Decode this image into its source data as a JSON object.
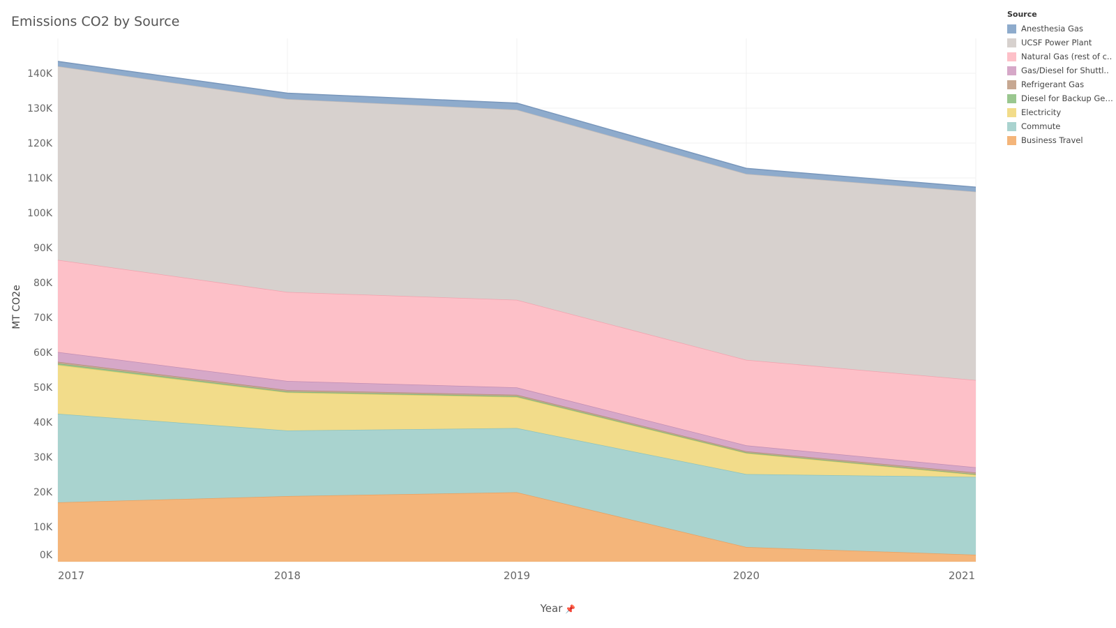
{
  "chart_data": {
    "type": "area",
    "title": "Emissions CO2 by Source",
    "xlabel": "Year",
    "ylabel": "MT CO2e",
    "legend_title": "Source",
    "categories": [
      "2017",
      "2018",
      "2019",
      "2020",
      "2021"
    ],
    "ylim": [
      0,
      150000
    ],
    "y_ticks": [
      0,
      10000,
      20000,
      30000,
      40000,
      50000,
      60000,
      70000,
      80000,
      90000,
      100000,
      110000,
      120000,
      130000,
      140000
    ],
    "y_tick_labels": [
      "0K",
      "10K",
      "20K",
      "30K",
      "40K",
      "50K",
      "60K",
      "70K",
      "80K",
      "90K",
      "100K",
      "110K",
      "120K",
      "130K",
      "140K"
    ],
    "stacked": true,
    "series": [
      {
        "name": "Business Travel",
        "legend_label": "Business Travel",
        "color": "#f4b57a",
        "line": "#e8a060",
        "values": [
          17000,
          18800,
          19900,
          4200,
          2000
        ]
      },
      {
        "name": "Commute",
        "legend_label": "Commute",
        "color": "#a9d3cf",
        "line": "#8cc3bd",
        "values": [
          25400,
          18800,
          18400,
          20900,
          22300
        ]
      },
      {
        "name": "Electricity",
        "legend_label": "Electricity",
        "color": "#f2dc8a",
        "line": "#e6cc6a",
        "values": [
          14000,
          10900,
          8900,
          6000,
          600
        ]
      },
      {
        "name": "Diesel for Backup Generators",
        "legend_label": "Diesel for Backup Gen..",
        "color": "#9ac78f",
        "line": "#7fb574",
        "values": [
          400,
          250,
          250,
          200,
          150
        ]
      },
      {
        "name": "Refrigerant Gas",
        "legend_label": "Refrigerant Gas",
        "color": "#c7a892",
        "line": "#b39078",
        "values": [
          500,
          450,
          400,
          350,
          500
        ]
      },
      {
        "name": "Gas/Diesel for Shuttles",
        "legend_label": "Gas/Diesel for Shuttl..",
        "color": "#d6a8c8",
        "line": "#c28db3",
        "values": [
          2800,
          2600,
          2100,
          1700,
          1500
        ]
      },
      {
        "name": "Natural Gas (rest of campus)",
        "legend_label": "Natural Gas (rest of c..",
        "color": "#fdc0c8",
        "line": "#f2a2ae",
        "values": [
          26400,
          25500,
          25100,
          24500,
          25000
        ]
      },
      {
        "name": "UCSF Power Plant",
        "legend_label": "UCSF Power Plant",
        "color": "#d7d1ce",
        "line": "#c4bcb8",
        "values": [
          55500,
          55300,
          54500,
          53300,
          54000
        ]
      },
      {
        "name": "Anesthesia Gas",
        "legend_label": "Anesthesia Gas",
        "color": "#8eabcc",
        "line": "#7896bb",
        "values": [
          1400,
          1700,
          1900,
          1600,
          1300
        ]
      }
    ]
  },
  "icons": {
    "pin": "pin-icon"
  }
}
